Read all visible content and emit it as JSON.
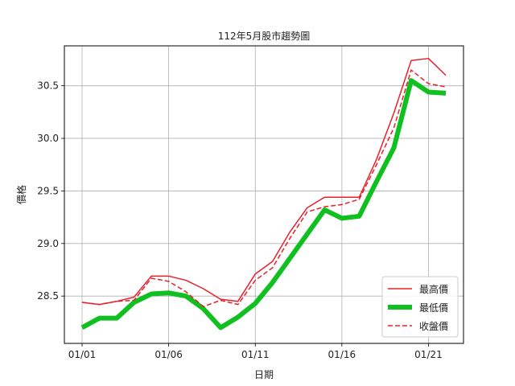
{
  "chart_data": {
    "type": "line",
    "title": "112年5月股市趨勢圖",
    "xlabel": "日期",
    "ylabel": "價格",
    "x_ticks": [
      "01/01",
      "01/06",
      "01/11",
      "01/16",
      "01/21"
    ],
    "y_ticks": [
      "28.5",
      "29.0",
      "29.5",
      "30.0",
      "30.5"
    ],
    "grid": true,
    "legend_position": "bottom-right",
    "x_range": [
      0,
      21
    ],
    "ylim": [
      28.05,
      30.88
    ],
    "series": [
      {
        "name": "最高價",
        "color": "#e8202a",
        "style": "solid",
        "values": [
          28.44,
          28.42,
          28.45,
          28.49,
          28.69,
          28.69,
          28.65,
          28.57,
          28.47,
          28.45,
          28.71,
          28.83,
          29.11,
          29.34,
          29.44,
          29.44,
          29.44,
          29.8,
          30.24,
          30.74,
          30.76,
          30.6
        ]
      },
      {
        "name": "最低價",
        "color": "#10c020",
        "style": "thick",
        "values": [
          28.2,
          28.29,
          28.29,
          28.44,
          28.52,
          28.53,
          28.5,
          28.38,
          28.2,
          28.3,
          28.43,
          28.63,
          28.86,
          29.09,
          29.32,
          29.24,
          29.26,
          29.59,
          29.91,
          30.55,
          30.44,
          30.43
        ]
      },
      {
        "name": "收盤價",
        "color": "#e8202a",
        "style": "dashed",
        "values": [
          28.44,
          28.42,
          28.45,
          28.46,
          28.67,
          28.64,
          28.54,
          28.4,
          28.46,
          28.42,
          28.65,
          28.77,
          29.05,
          29.3,
          29.35,
          29.37,
          29.42,
          29.75,
          30.1,
          30.65,
          30.52,
          30.49
        ]
      }
    ]
  }
}
